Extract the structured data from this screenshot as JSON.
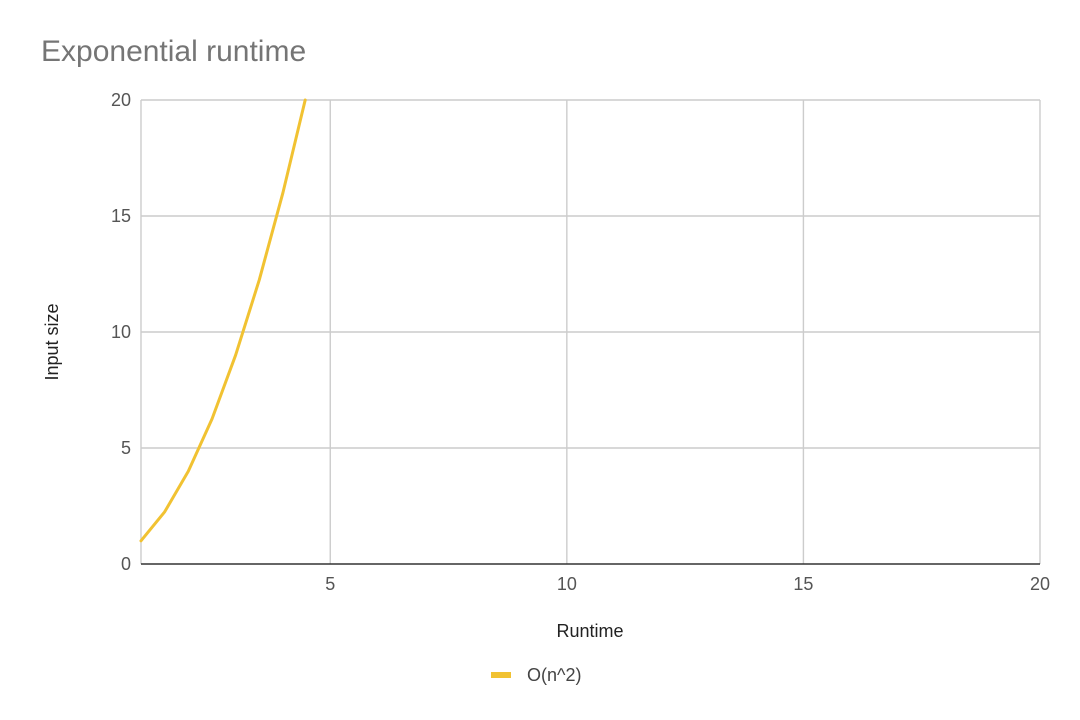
{
  "chart_data": {
    "type": "line",
    "title": "Exponential runtime",
    "xlabel": "Runtime",
    "ylabel": "Input size",
    "xlim": [
      1,
      20
    ],
    "ylim": [
      0,
      20
    ],
    "x_ticks": [
      5,
      10,
      15,
      20
    ],
    "y_ticks": [
      0,
      5,
      10,
      15,
      20
    ],
    "grid": true,
    "legend_position": "bottom",
    "series": [
      {
        "name": "O(n^2)",
        "color": "#f1c232",
        "x": [
          1.0,
          1.5,
          2.0,
          2.5,
          3.0,
          3.5,
          4.0,
          4.47
        ],
        "y": [
          1.0,
          2.25,
          4.0,
          6.25,
          9.0,
          12.25,
          16.0,
          20.0
        ]
      }
    ]
  }
}
